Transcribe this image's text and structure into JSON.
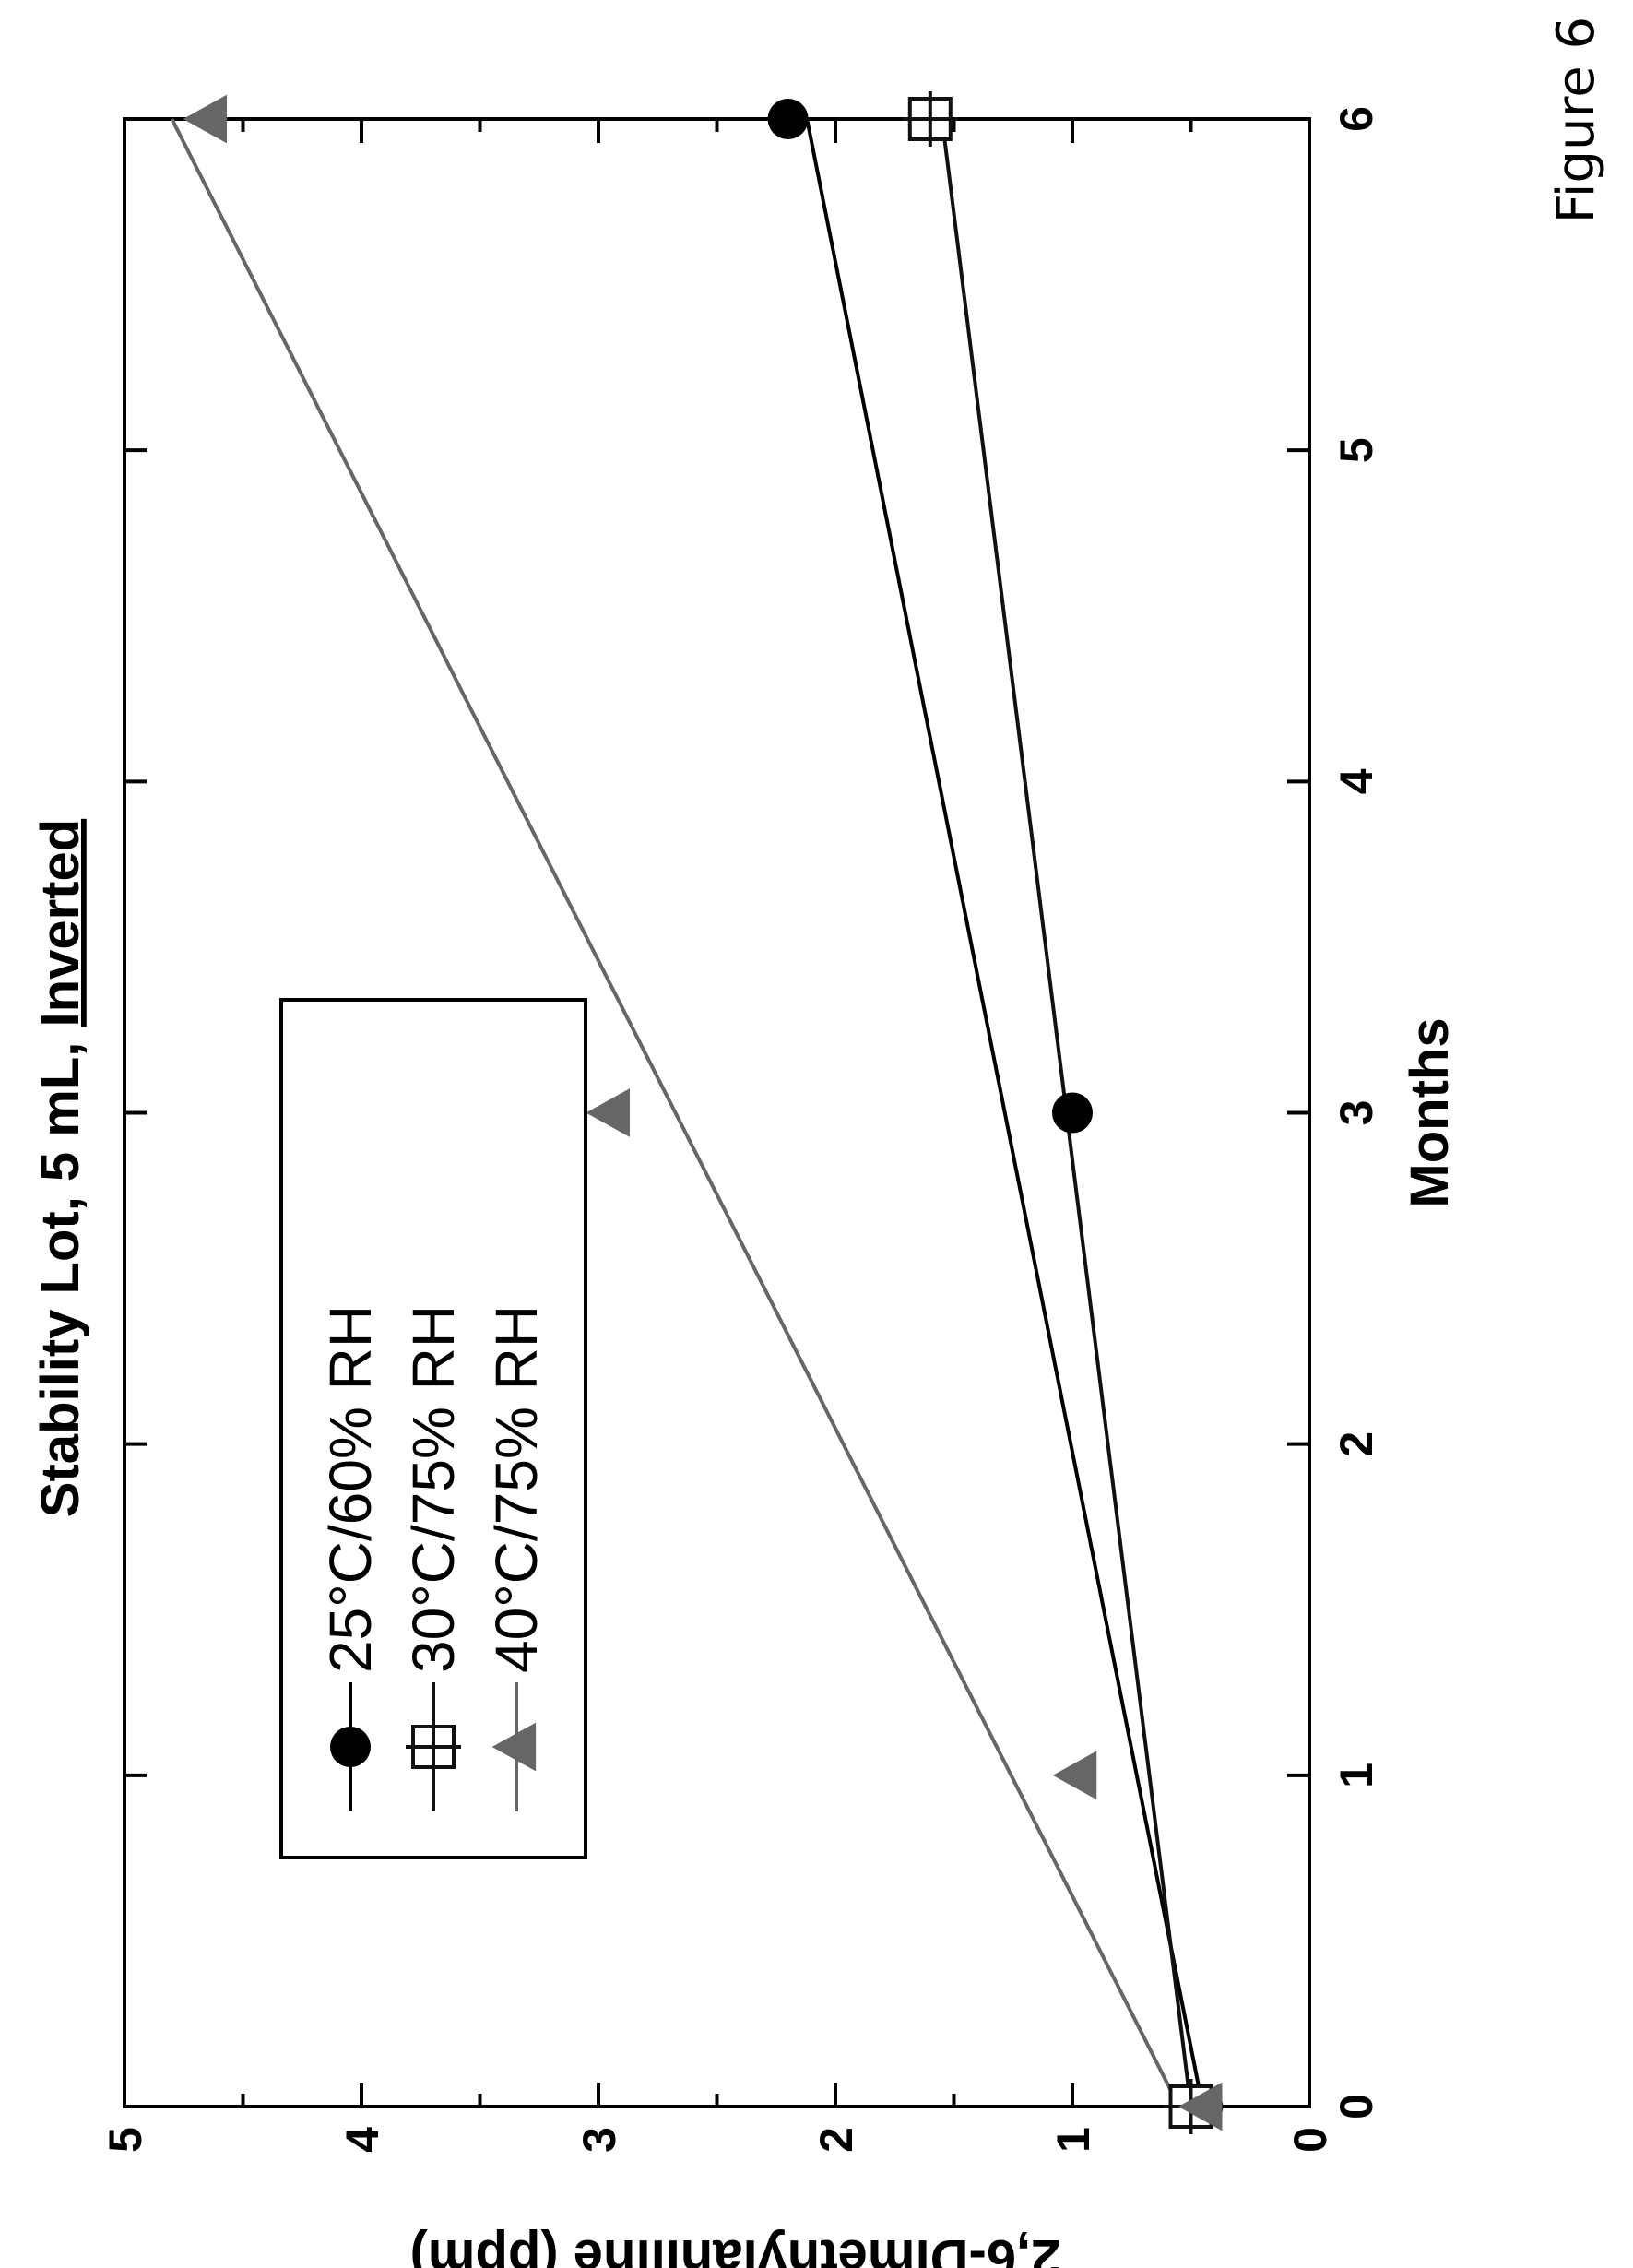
{
  "figure_label": "Figure 6",
  "chart_data": {
    "type": "line",
    "title_main": "Stability Lot, 5 mL, ",
    "title_emphasis": "Inverted",
    "xlabel": "Months",
    "ylabel": "2,6-Dimethylaniline (ppm)",
    "xlim": [
      0,
      6
    ],
    "ylim": [
      0,
      5
    ],
    "xticks": [
      0,
      1,
      2,
      3,
      4,
      5,
      6
    ],
    "yticks": [
      0,
      1,
      2,
      3,
      4,
      5
    ],
    "grid": false,
    "legend_position": "top-left",
    "series": [
      {
        "name": "25°C/60% RH",
        "marker": "filled-circle",
        "color": "#000000",
        "points": [
          [
            0,
            0.45
          ],
          [
            3,
            1.0
          ],
          [
            6,
            2.2
          ]
        ],
        "trendline": [
          [
            0,
            0.45
          ],
          [
            6,
            2.12
          ]
        ]
      },
      {
        "name": "30°C/75% RH",
        "marker": "open-square-cross",
        "color": "#111111",
        "points": [
          [
            0,
            0.5
          ],
          [
            6,
            1.6
          ]
        ],
        "trendline": [
          [
            0,
            0.5
          ],
          [
            6,
            1.55
          ]
        ]
      },
      {
        "name": "40°C/75% RH",
        "marker": "triangle",
        "color": "#666666",
        "points": [
          [
            0,
            0.45
          ],
          [
            1,
            0.98
          ],
          [
            3,
            2.95
          ],
          [
            6,
            4.65
          ]
        ],
        "trendline": [
          [
            0,
            0.55
          ],
          [
            6,
            4.8
          ]
        ]
      }
    ]
  }
}
